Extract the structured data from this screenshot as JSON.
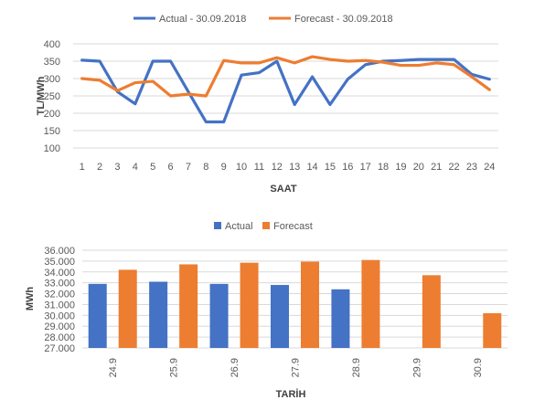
{
  "chart_data": [
    {
      "type": "line",
      "title": "",
      "xlabel": "SAAT",
      "ylabel": "TL/MWh",
      "ylim": [
        100,
        400
      ],
      "yticks": [
        100,
        150,
        200,
        250,
        300,
        350,
        400
      ],
      "grid": true,
      "legend_position": "top",
      "x": [
        "1",
        "2",
        "3",
        "4",
        "5",
        "6",
        "7",
        "8",
        "9",
        "10",
        "11",
        "12",
        "13",
        "14",
        "15",
        "16",
        "17",
        "18",
        "19",
        "20",
        "21",
        "22",
        "23",
        "24"
      ],
      "series": [
        {
          "name": "Actual - 30.09.2018",
          "color": "#4472c4",
          "values": [
            353,
            350,
            262,
            227,
            350,
            350,
            262,
            175,
            175,
            310,
            317,
            350,
            225,
            305,
            225,
            298,
            340,
            350,
            352,
            355,
            355,
            355,
            312,
            298
          ]
        },
        {
          "name": "Forecast - 30.09.2018",
          "color": "#ed7d31",
          "values": [
            300,
            295,
            265,
            288,
            292,
            250,
            255,
            250,
            352,
            345,
            345,
            360,
            345,
            363,
            355,
            350,
            352,
            347,
            338,
            338,
            345,
            340,
            305,
            268
          ]
        }
      ]
    },
    {
      "type": "bar",
      "title": "",
      "xlabel": "TARİH",
      "ylabel": "MWh",
      "ylim": [
        27000,
        36000
      ],
      "yticks": [
        "27.000",
        "28.000",
        "29.000",
        "30.000",
        "31.000",
        "32.000",
        "33.000",
        "34.000",
        "35.000",
        "36.000"
      ],
      "grid": true,
      "legend_position": "top",
      "categories": [
        "24.9",
        "25.9",
        "26.9",
        "27.9",
        "28.9",
        "29.9",
        "30.9"
      ],
      "series": [
        {
          "name": "Actual",
          "color": "#4472c4",
          "values": [
            32900,
            33100,
            32900,
            32800,
            32400,
            null,
            null
          ]
        },
        {
          "name": "Forecast",
          "color": "#ed7d31",
          "values": [
            34200,
            34700,
            34850,
            34950,
            35100,
            33700,
            30200
          ]
        }
      ]
    }
  ]
}
